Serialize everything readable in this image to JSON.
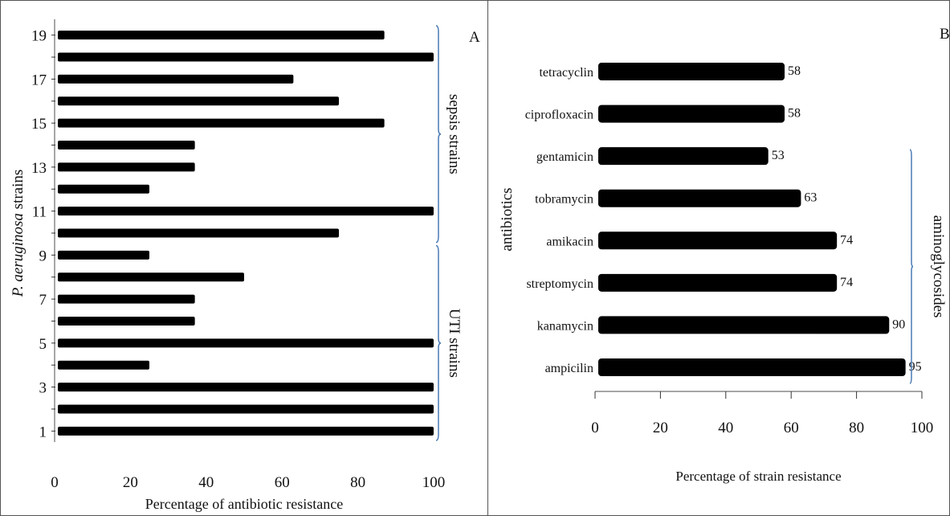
{
  "chart_data": [
    {
      "type": "bar",
      "orientation": "horizontal",
      "panel_label": "A",
      "title": "",
      "xlabel": "Percentage of antibiotic resistance",
      "ylabel_italic": "P. aeruginosa",
      "ylabel_rest": " strains",
      "xlim": [
        0,
        100
      ],
      "x_ticks": [
        0,
        20,
        40,
        60,
        80,
        100
      ],
      "y_tick_labels": [
        "1",
        "3",
        "5",
        "7",
        "9",
        "11",
        "13",
        "15",
        "17",
        "19"
      ],
      "categories": [
        "1",
        "2",
        "3",
        "4",
        "5",
        "6",
        "7",
        "8",
        "9",
        "10",
        "11",
        "12",
        "13",
        "14",
        "15",
        "16",
        "17",
        "18",
        "19"
      ],
      "values": [
        100,
        100,
        100,
        25,
        100,
        37,
        37,
        50,
        25,
        75,
        100,
        25,
        37,
        37,
        87,
        75,
        63,
        100,
        87
      ],
      "grid": false,
      "annotations": [
        {
          "text": "UTI strains",
          "from_category": "1",
          "to_category": "9"
        },
        {
          "text": "sepsis strains",
          "from_category": "10",
          "to_category": "19"
        }
      ]
    },
    {
      "type": "bar",
      "orientation": "horizontal",
      "panel_label": "B",
      "title": "",
      "xlabel": "Percentage of strain resistance",
      "ylabel": "antibiotics",
      "xlim": [
        0,
        100
      ],
      "x_ticks": [
        0,
        20,
        40,
        60,
        80,
        100
      ],
      "categories": [
        "ampicilin",
        "kanamycin",
        "streptomycin",
        "amikacin",
        "tobramycin",
        "gentamicin",
        "ciprofloxacin",
        "tetracyclin"
      ],
      "values": [
        95,
        90,
        74,
        74,
        63,
        53,
        58,
        58
      ],
      "data_labels": [
        "95",
        "90",
        "74",
        "74",
        "63",
        "53",
        "58",
        "58"
      ],
      "grid": false,
      "annotations": [
        {
          "text": "aminoglycosides",
          "from_category": "ampicilin",
          "to_category": "gentamicin"
        }
      ]
    }
  ]
}
